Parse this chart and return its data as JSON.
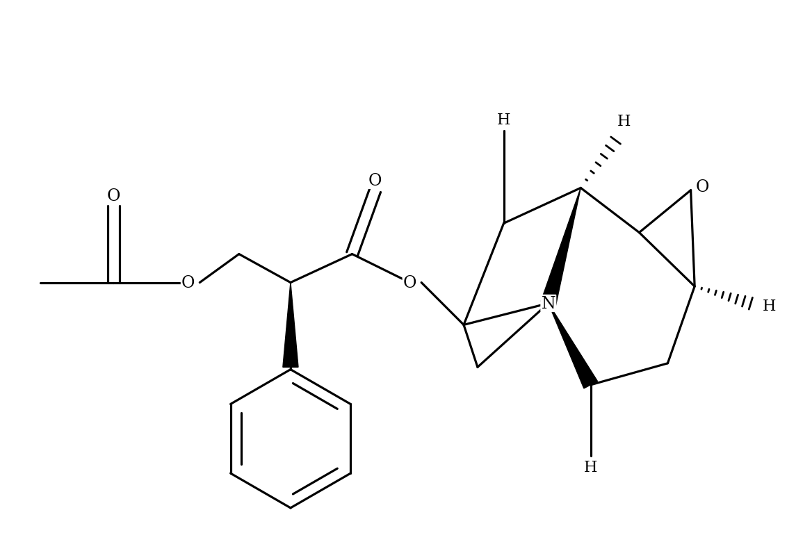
{
  "bg_color": "#ffffff",
  "lc": "#000000",
  "lw": 2.3,
  "xlim": [
    0.0,
    10.5
  ],
  "ylim": [
    0.8,
    7.6
  ],
  "figw": 11.68,
  "figh": 8.04
}
